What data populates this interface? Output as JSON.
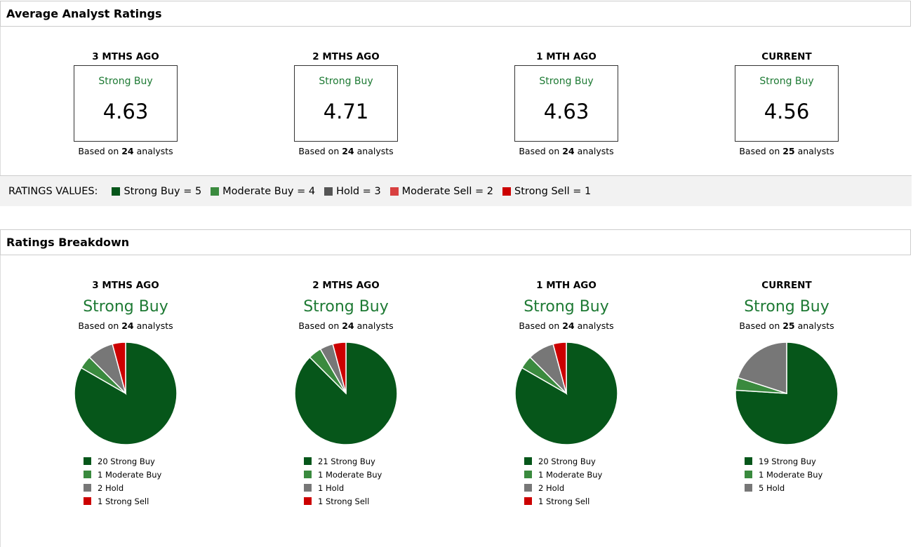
{
  "avg": {
    "title": "Average Analyst Ratings",
    "based_prefix": "Based on",
    "based_suffix": "analysts",
    "periods": [
      {
        "label": "3 MTHS AGO",
        "rating": "Strong Buy",
        "score": "4.63",
        "analysts": "24"
      },
      {
        "label": "2 MTHS AGO",
        "rating": "Strong Buy",
        "score": "4.71",
        "analysts": "24"
      },
      {
        "label": "1 MTH AGO",
        "rating": "Strong Buy",
        "score": "4.63",
        "analysts": "24"
      },
      {
        "label": "CURRENT",
        "rating": "Strong Buy",
        "score": "4.56",
        "analysts": "25"
      }
    ]
  },
  "ratings_values": {
    "label": "RATINGS VALUES:",
    "items": [
      {
        "label": "Strong Buy = 5",
        "color": "#06561a"
      },
      {
        "label": "Moderate Buy = 4",
        "color": "#3a8a3e"
      },
      {
        "label": "Hold = 3",
        "color": "#555555"
      },
      {
        "label": "Moderate Sell = 2",
        "color": "#d84040"
      },
      {
        "label": "Strong Sell = 1",
        "color": "#cc0000"
      }
    ]
  },
  "breakdown": {
    "title": "Ratings Breakdown",
    "colors": {
      "Strong Buy": "#06561a",
      "Moderate Buy": "#3a8a3e",
      "Hold": "#777777",
      "Strong Sell": "#cc0000"
    },
    "periods": [
      {
        "label": "3 MTHS AGO",
        "rating": "Strong Buy",
        "analysts": "24",
        "slices": [
          {
            "name": "Strong Buy",
            "count": 20,
            "text": "20 Strong Buy"
          },
          {
            "name": "Moderate Buy",
            "count": 1,
            "text": "1 Moderate Buy"
          },
          {
            "name": "Hold",
            "count": 2,
            "text": "2 Hold"
          },
          {
            "name": "Strong Sell",
            "count": 1,
            "text": "1 Strong Sell"
          }
        ]
      },
      {
        "label": "2 MTHS AGO",
        "rating": "Strong Buy",
        "analysts": "24",
        "slices": [
          {
            "name": "Strong Buy",
            "count": 21,
            "text": "21 Strong Buy"
          },
          {
            "name": "Moderate Buy",
            "count": 1,
            "text": "1 Moderate Buy"
          },
          {
            "name": "Hold",
            "count": 1,
            "text": "1 Hold"
          },
          {
            "name": "Strong Sell",
            "count": 1,
            "text": "1 Strong Sell"
          }
        ]
      },
      {
        "label": "1 MTH AGO",
        "rating": "Strong Buy",
        "analysts": "24",
        "slices": [
          {
            "name": "Strong Buy",
            "count": 20,
            "text": "20 Strong Buy"
          },
          {
            "name": "Moderate Buy",
            "count": 1,
            "text": "1 Moderate Buy"
          },
          {
            "name": "Hold",
            "count": 2,
            "text": "2 Hold"
          },
          {
            "name": "Strong Sell",
            "count": 1,
            "text": "1 Strong Sell"
          }
        ]
      },
      {
        "label": "CURRENT",
        "rating": "Strong Buy",
        "analysts": "25",
        "slices": [
          {
            "name": "Strong Buy",
            "count": 19,
            "text": "19 Strong Buy"
          },
          {
            "name": "Moderate Buy",
            "count": 1,
            "text": "1 Moderate Buy"
          },
          {
            "name": "Hold",
            "count": 5,
            "text": "5 Hold"
          }
        ]
      }
    ]
  }
}
